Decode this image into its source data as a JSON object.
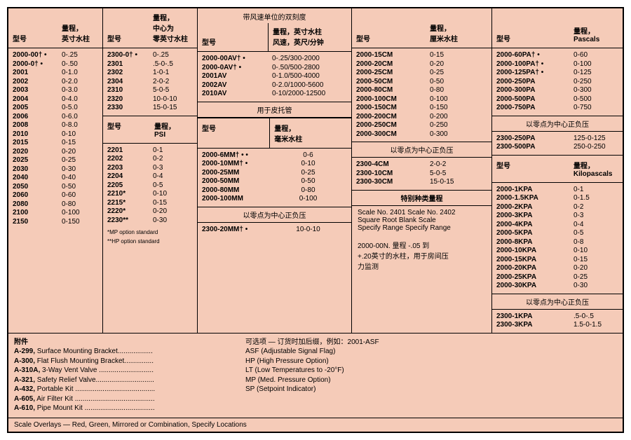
{
  "columns": {
    "c1": {
      "h1": "型号",
      "h2": "量程，\n英寸水柱",
      "rows": [
        [
          "2000-00† •",
          "0-.25"
        ],
        [
          "2000-0† •",
          "0-.50"
        ],
        [
          "2001",
          "0-1.0"
        ],
        [
          "2002",
          "0-2.0"
        ],
        [
          "2003",
          "0-3.0"
        ],
        [
          "2004",
          "0-4.0"
        ],
        [
          "2005",
          "0-5.0"
        ],
        [
          "2006",
          "0-6.0"
        ],
        [
          "2008",
          "0-8.0"
        ],
        [
          "2010",
          "0-10"
        ],
        [
          "2015",
          "0-15"
        ],
        [
          "2020",
          "0-20"
        ],
        [
          "2025",
          "0-25"
        ],
        [
          "2030",
          "0-30"
        ],
        [
          "2040",
          "0-40"
        ],
        [
          "2050",
          "0-50"
        ],
        [
          "2060",
          "0-60"
        ],
        [
          "2080",
          "0-80"
        ],
        [
          "2100",
          "0-100"
        ],
        [
          "2150",
          "0-150"
        ]
      ]
    },
    "c2a": {
      "h1": "型号",
      "h2": "量程，\n中心为\n零英寸水柱",
      "rows": [
        [
          "2300-0† •",
          "0-.25"
        ],
        [
          "2301",
          ".5-0-.5"
        ],
        [
          "2302",
          "1-0-1"
        ],
        [
          "2304",
          "2-0-2"
        ],
        [
          "2310",
          "5-0-5"
        ],
        [
          "2320",
          "10-0-10"
        ],
        [
          "2330",
          "15-0-15"
        ]
      ]
    },
    "c2b": {
      "h1": "型号",
      "h2": "量程，\nPSI",
      "rows": [
        [
          "2201",
          "0-1"
        ],
        [
          "2202",
          "0-2"
        ],
        [
          "2203",
          "0-3"
        ],
        [
          "2204",
          "0-4"
        ],
        [
          "2205",
          "0-5"
        ],
        [
          "2210*",
          "0-10"
        ],
        [
          "2215*",
          "0-15"
        ],
        [
          "2220*",
          "0-20"
        ],
        [
          "2230**",
          "0-30"
        ]
      ],
      "foot1": "*MP option standard",
      "foot2": "**HP option standard"
    },
    "c3_top_title": "带风速单位的双刻度",
    "c3a": {
      "h1": "型号",
      "h2": "量程，英寸水柱\n风速，英尺/分钟",
      "rows": [
        [
          "2000-00AV† •",
          "0-.25/300-2000"
        ],
        [
          "2000-0AV† •",
          "0-.50/500-2800"
        ],
        [
          "2001AV",
          "0-1.0/500-4000"
        ],
        [
          "2002AV",
          "0-2.0/1000-5600"
        ],
        [
          "2010AV",
          "0-10/2000-12500"
        ]
      ],
      "pitot": "用于皮托管"
    },
    "c3b": {
      "h1": "型号",
      "h2": "量程，\n毫米水柱",
      "rows": [
        [
          "2000-6MM† • •",
          "0-6"
        ],
        [
          "2000-10MM† •",
          "0-10"
        ],
        [
          "2000-25MM",
          "0-25"
        ],
        [
          "2000-50MM",
          "0-50"
        ],
        [
          "2000-80MM",
          "0-80"
        ],
        [
          "2000-100MM",
          "0-100"
        ]
      ]
    },
    "c3c": {
      "title": "以零点为中心正负压",
      "row": [
        "2300-20MM† •",
        "10-0-10"
      ]
    },
    "c4a": {
      "h1": "型号",
      "h2": "量程，\n厘米水柱",
      "rows": [
        [
          "2000-15CM",
          "0-15"
        ],
        [
          "2000-20CM",
          "0-20"
        ],
        [
          "2000-25CM",
          "0-25"
        ],
        [
          "2000-50CM",
          "0-50"
        ],
        [
          "2000-80CM",
          "0-80"
        ],
        [
          "2000-100CM",
          "0-100"
        ],
        [
          "2000-150CM",
          "0-150"
        ],
        [
          "2000-200CM",
          "0-200"
        ],
        [
          "2000-250CM",
          "0-250"
        ],
        [
          "2000-300CM",
          "0-300"
        ]
      ]
    },
    "c4b": {
      "title": "以零点为中心正负压",
      "rows": [
        [
          "2300-4CM",
          "2-0-2"
        ],
        [
          "2300-10CM",
          "5-0-5"
        ],
        [
          "2300-30CM",
          "15-0-15"
        ]
      ]
    },
    "c4c": {
      "title": "特别种类量程",
      "lines": [
        "Scale No. 2401    Scale No. 2402",
        "Square Root       Blank Scale",
        "Specify Range     Specify Range",
        "",
        "2000-00N. 量程 -.05 到",
        "+.20英寸的水柱，用于房间压",
        "力监测"
      ]
    },
    "c5a": {
      "h1": "型号",
      "h2": "量程，\nPascals",
      "rows": [
        [
          "2000-60PA† •",
          "0-60"
        ],
        [
          "2000-100PA† •",
          "0-100"
        ],
        [
          "2000-125PA† •",
          "0-125"
        ],
        [
          "2000-250PA",
          "0-250"
        ],
        [
          "2000-300PA",
          "0-300"
        ],
        [
          "2000-500PA",
          "0-500"
        ],
        [
          "2000-750PA",
          "0-750"
        ]
      ]
    },
    "c5b": {
      "title": "以零点为中心正负压",
      "rows": [
        [
          "2300-250PA",
          "125-0-125"
        ],
        [
          "2300-500PA",
          "250-0-250"
        ]
      ]
    },
    "c5c": {
      "h1": "型号",
      "h2": "量程，\nKilopascals",
      "rows": [
        [
          "2000-1KPA",
          "0-1"
        ],
        [
          "2000-1.5KPA",
          "0-1.5"
        ],
        [
          "2000-2KPA",
          "0-2"
        ],
        [
          "2000-3KPA",
          "0-3"
        ],
        [
          "2000-4KPA",
          "0-4"
        ],
        [
          "2000-5KPA",
          "0-5"
        ],
        [
          "2000-8KPA",
          "0-8"
        ],
        [
          "2000-10KPA",
          "0-10"
        ],
        [
          "2000-15KPA",
          "0-15"
        ],
        [
          "2000-20KPA",
          "0-20"
        ],
        [
          "2000-25KPA",
          "0-25"
        ],
        [
          "2000-30KPA",
          "0-30"
        ]
      ]
    },
    "c5d": {
      "title": "以零点为中心正负压",
      "rows": [
        [
          "2300-1KPA",
          ".5-0-.5"
        ],
        [
          "2300-3KPA",
          "1.5-0-1.5"
        ]
      ]
    }
  },
  "accessories": {
    "title": "附件",
    "left": [
      "A-299, Surface Mounting Bracket..................",
      "A-300, Flat Flush Mounting Bracket...............",
      "A-310A, 3-Way Vent Valve ............................",
      "A-321, Safety Relief Valve..............................",
      "A-432, Portable Kit .........................................",
      "A-605, Air Filter Kit .........................................",
      "A-610, Pipe Mount Kit ...................................."
    ],
    "mid": [
      "可选项 — 订货时加后缀，例如：2001-ASF",
      "ASF (Adjustable Signal Flag)",
      "HP (High Pressure Option)",
      "LT (Low Temperatures to -20°F)",
      "MP (Med. Pressure Option)",
      "SP (Setpoint Indicator)"
    ]
  },
  "overlay": "Scale Overlays — Red, Green, Mirrored or Combination, Specify Locations"
}
